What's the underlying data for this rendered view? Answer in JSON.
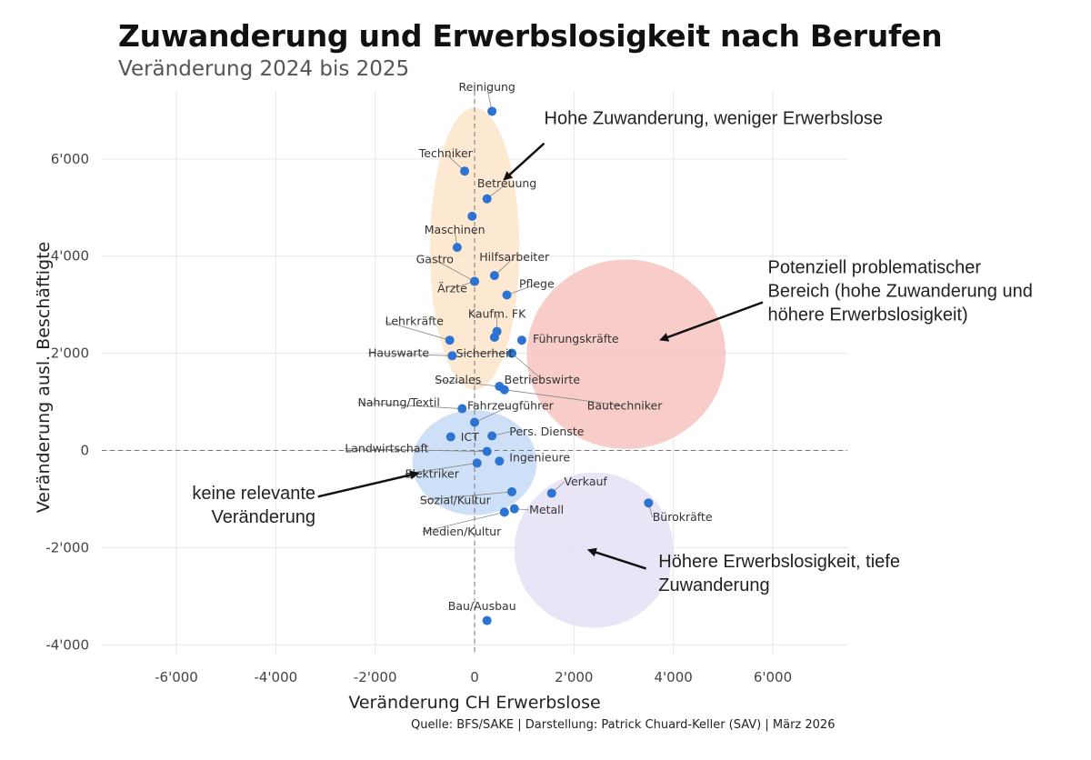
{
  "title": "Zuwanderung und Erwerbslosigkeit nach Berufen",
  "subtitle": "Veränderung 2024 bis 2025",
  "caption": "Quelle: BFS/SAKE | Darstellung: Patrick Chuard-Keller (SAV) | März 2026",
  "chart_data": {
    "type": "scatter",
    "xlabel": "Veränderung CH Erwerbslose",
    "ylabel": "Veränderung ausl. Beschäftigte",
    "xlim": [
      -7500,
      7500
    ],
    "ylim": [
      -4200,
      7400
    ],
    "x_ticks": [
      -6000,
      -4000,
      -2000,
      0,
      2000,
      4000,
      6000
    ],
    "x_tick_labels": [
      "-6'000",
      "-4'000",
      "-2'000",
      "0",
      "2'000",
      "4'000",
      "6'000"
    ],
    "y_ticks": [
      -4000,
      -2000,
      0,
      2000,
      4000,
      6000
    ],
    "y_tick_labels": [
      "-4'000",
      "-2'000",
      "0",
      "2'000",
      "4'000",
      "6'000"
    ],
    "grid": true,
    "point_color": "#2c73d2",
    "points": [
      {
        "label": "Reinigung",
        "x": 350,
        "y": 6980,
        "lx": 250,
        "ly": 7400,
        "anchor": "middle"
      },
      {
        "label": "Techniker",
        "x": -200,
        "y": 5750,
        "lx": -580,
        "ly": 6030,
        "anchor": "middle"
      },
      {
        "label": "Betreuung",
        "x": 250,
        "y": 5180,
        "lx": 650,
        "ly": 5420,
        "anchor": "middle"
      },
      {
        "label": "",
        "x": -50,
        "y": 4820
      },
      {
        "label": "Maschinen",
        "x": -350,
        "y": 4180,
        "lx": -400,
        "ly": 4460,
        "anchor": "middle"
      },
      {
        "label": "Gastro",
        "x": 0,
        "y": 3480,
        "lx": -800,
        "ly": 3850,
        "anchor": "middle"
      },
      {
        "label": "Hilfsarbeiter",
        "x": 400,
        "y": 3600,
        "lx": 800,
        "ly": 3900,
        "anchor": "middle"
      },
      {
        "label": "Ärzte",
        "x": 0,
        "y": 3480,
        "lx": -450,
        "ly": 3260,
        "anchor": "middle"
      },
      {
        "label": "Pflege",
        "x": 650,
        "y": 3200,
        "lx": 1250,
        "ly": 3350,
        "anchor": "middle"
      },
      {
        "label": "Kaufm. FK",
        "x": 450,
        "y": 2450,
        "lx": 450,
        "ly": 2730,
        "anchor": "middle"
      },
      {
        "label": "Lehrkräfte",
        "x": -500,
        "y": 2270,
        "lx": -1800,
        "ly": 2580,
        "anchor": "start"
      },
      {
        "label": "",
        "x": 400,
        "y": 2330
      },
      {
        "label": "Führungskräfte",
        "x": 950,
        "y": 2270,
        "lx": 1170,
        "ly": 2220,
        "anchor": "start"
      },
      {
        "label": "Hauswarte",
        "x": -450,
        "y": 1950,
        "lx": -2140,
        "ly": 1930,
        "anchor": "start"
      },
      {
        "label": "Sicherheit",
        "x": 750,
        "y": 2000,
        "lx": 200,
        "ly": 1920,
        "anchor": "middle",
        "to": [
          -300,
          1930
        ]
      },
      {
        "label": "Betriebswirte",
        "x": 750,
        "y": 2000,
        "lx": 1360,
        "ly": 1380,
        "anchor": "middle"
      },
      {
        "label": "Soziales",
        "x": 500,
        "y": 1320,
        "lx": -800,
        "ly": 1380,
        "anchor": "start"
      },
      {
        "label": "Bautechniker",
        "x": 600,
        "y": 1250,
        "lx": 3020,
        "ly": 840,
        "anchor": "middle"
      },
      {
        "label": "Nahrung/Textil",
        "x": -250,
        "y": 860,
        "lx": -2350,
        "ly": 910,
        "anchor": "start"
      },
      {
        "label": "Fahrzeugführer",
        "x": 0,
        "y": 580,
        "lx": 720,
        "ly": 840,
        "anchor": "middle"
      },
      {
        "label": "ICT",
        "x": -480,
        "y": 280,
        "lx": -280,
        "ly": 200,
        "anchor": "start"
      },
      {
        "label": "Pers. Dienste",
        "x": 350,
        "y": 300,
        "lx": 700,
        "ly": 310,
        "anchor": "start"
      },
      {
        "label": "Landwirtschaft",
        "x": 250,
        "y": -20,
        "lx": -2610,
        "ly": -40,
        "anchor": "start"
      },
      {
        "label": "Ingenieure",
        "x": 500,
        "y": -220,
        "lx": 700,
        "ly": -220,
        "anchor": "start"
      },
      {
        "label": "Elektriker",
        "x": 50,
        "y": -260,
        "lx": -1400,
        "ly": -560,
        "anchor": "start"
      },
      {
        "label": "Sozial/Kultur",
        "x": 750,
        "y": -850,
        "lx": -1100,
        "ly": -1100,
        "anchor": "start"
      },
      {
        "label": "Verkauf",
        "x": 1550,
        "y": -880,
        "lx": 1800,
        "ly": -720,
        "anchor": "start"
      },
      {
        "label": "Bürokräfte",
        "x": 3500,
        "y": -1080,
        "lx": 3580,
        "ly": -1450,
        "anchor": "start"
      },
      {
        "label": "Metall",
        "x": 800,
        "y": -1200,
        "lx": 1100,
        "ly": -1300,
        "anchor": "start"
      },
      {
        "label": "",
        "x": 600,
        "y": -1270
      },
      {
        "label": "Medien/Kultur",
        "x": 600,
        "y": -1270,
        "lx": -1050,
        "ly": -1750,
        "anchor": "start"
      },
      {
        "label": "Bau/Ausbau",
        "x": 250,
        "y": -3500,
        "lx": 150,
        "ly": -3280,
        "anchor": "middle"
      }
    ],
    "regions": [
      {
        "cx": 0,
        "cy": 4150,
        "rx": 900,
        "ry": 2900,
        "color": "#fde6cc"
      },
      {
        "cx": 3050,
        "cy": 1980,
        "rx": 2000,
        "ry": 1950,
        "color": "#f7c8c3"
      },
      {
        "cx": 0,
        "cy": -250,
        "rx": 1250,
        "ry": 1080,
        "color": "#c9ddf7"
      },
      {
        "cx": 2400,
        "cy": -2050,
        "rx": 1600,
        "ry": 1600,
        "color": "#e7e2f5"
      }
    ],
    "annotations": [
      {
        "text": [
          "Hohe Zuwanderung, weniger Erwerbslose"
        ],
        "x": 1400,
        "y": 6720,
        "anchor": "start",
        "arrow_from": [
          1400,
          6320
        ],
        "arrow_to": [
          600,
          5580
        ]
      },
      {
        "text": [
          "Potenziell problematischer",
          "Bereich (hohe Zuwanderung und",
          "höhere Erwerbslosigkeit)"
        ],
        "x": 5900,
        "y": 3650,
        "anchor": "start",
        "arrow_from": [
          5800,
          3050
        ],
        "arrow_to": [
          3750,
          2280
        ]
      },
      {
        "text": [
          "keine relevante",
          "Veränderung"
        ],
        "x": -3200,
        "y": -1000,
        "anchor": "end",
        "arrow_from": [
          -3150,
          -950
        ],
        "arrow_to": [
          -1150,
          -470
        ]
      },
      {
        "text": [
          "Höhere Erwerbslosigkeit, tiefe",
          "Zuwanderung"
        ],
        "x": 3700,
        "y": -2400,
        "anchor": "start",
        "arrow_from": [
          3450,
          -2430
        ],
        "arrow_to": [
          2300,
          -2050
        ]
      }
    ]
  }
}
